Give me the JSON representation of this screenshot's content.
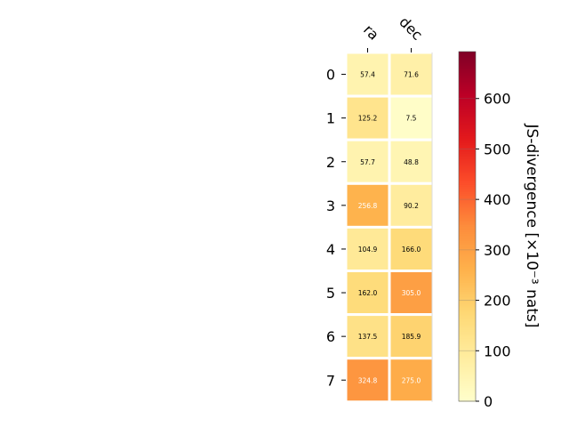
{
  "chart_data": {
    "type": "heatmap",
    "title": "",
    "columns": [
      "ra",
      "dec"
    ],
    "rows": [
      "0",
      "1",
      "2",
      "3",
      "4",
      "5",
      "6",
      "7"
    ],
    "values": [
      [
        57.4,
        71.6
      ],
      [
        125.2,
        7.5
      ],
      [
        57.7,
        48.8
      ],
      [
        256.8,
        90.2
      ],
      [
        104.9,
        166.0
      ],
      [
        162.0,
        305.0
      ],
      [
        137.5,
        185.9
      ],
      [
        324.8,
        275.0
      ]
    ],
    "cell_labels": [
      [
        "57.4",
        "71.6"
      ],
      [
        "125.2",
        "7.5"
      ],
      [
        "57.7",
        "48.8"
      ],
      [
        "256.8",
        "90.2"
      ],
      [
        "104.9",
        "166.0"
      ],
      [
        "162.0",
        "305.0"
      ],
      [
        "137.5",
        "185.9"
      ],
      [
        "324.8",
        "275.0"
      ]
    ],
    "colorbar": {
      "label": "JS-divergence [×10⁻³ nats]",
      "min": 0,
      "max": 693,
      "ticks": [
        0,
        100,
        200,
        300,
        400,
        500,
        600
      ],
      "tick_labels": [
        "0",
        "100",
        "200",
        "300",
        "400",
        "500",
        "600"
      ],
      "colormap": "YlOrRd"
    },
    "text_colors": {
      "dark": "#000000",
      "light": "#ffffff"
    }
  }
}
